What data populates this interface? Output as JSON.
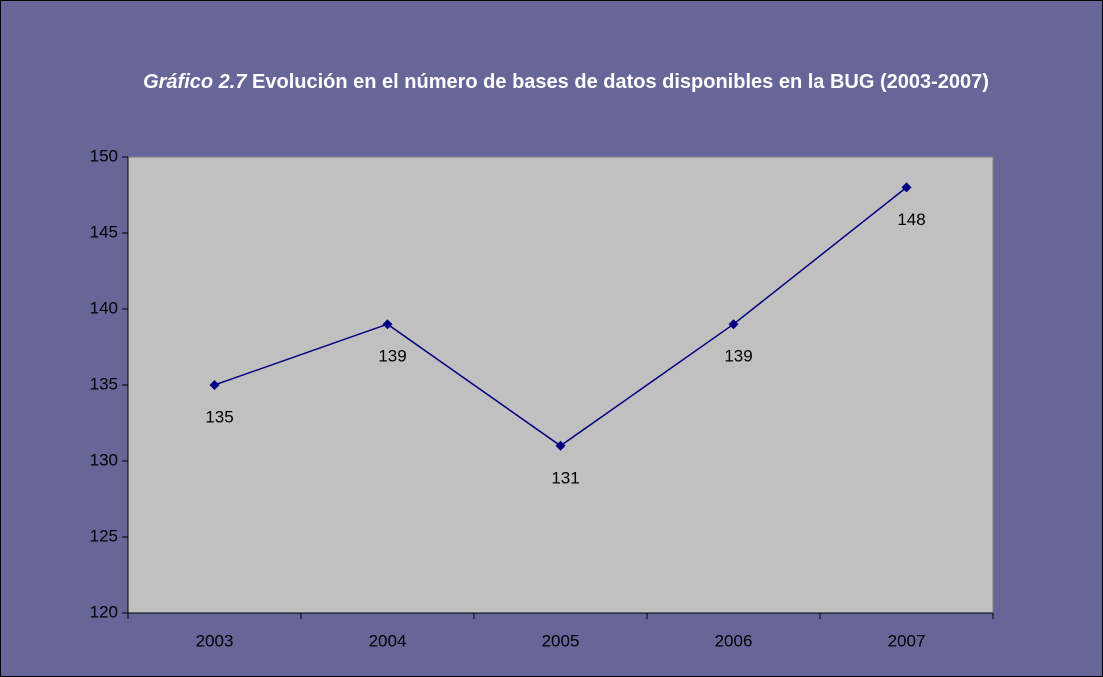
{
  "chart_data": {
    "type": "line",
    "title_label": "Gráfico 2.7",
    "title": "Evolución en el número de bases de datos disponibles en la BUG (2003-2007)",
    "categories": [
      "2003",
      "2004",
      "2005",
      "2006",
      "2007"
    ],
    "values": [
      135,
      139,
      131,
      139,
      148
    ],
    "color": "#000080",
    "ylim": [
      120,
      150
    ],
    "yticks": [
      120,
      125,
      130,
      135,
      140,
      145,
      150
    ],
    "grid": false
  }
}
